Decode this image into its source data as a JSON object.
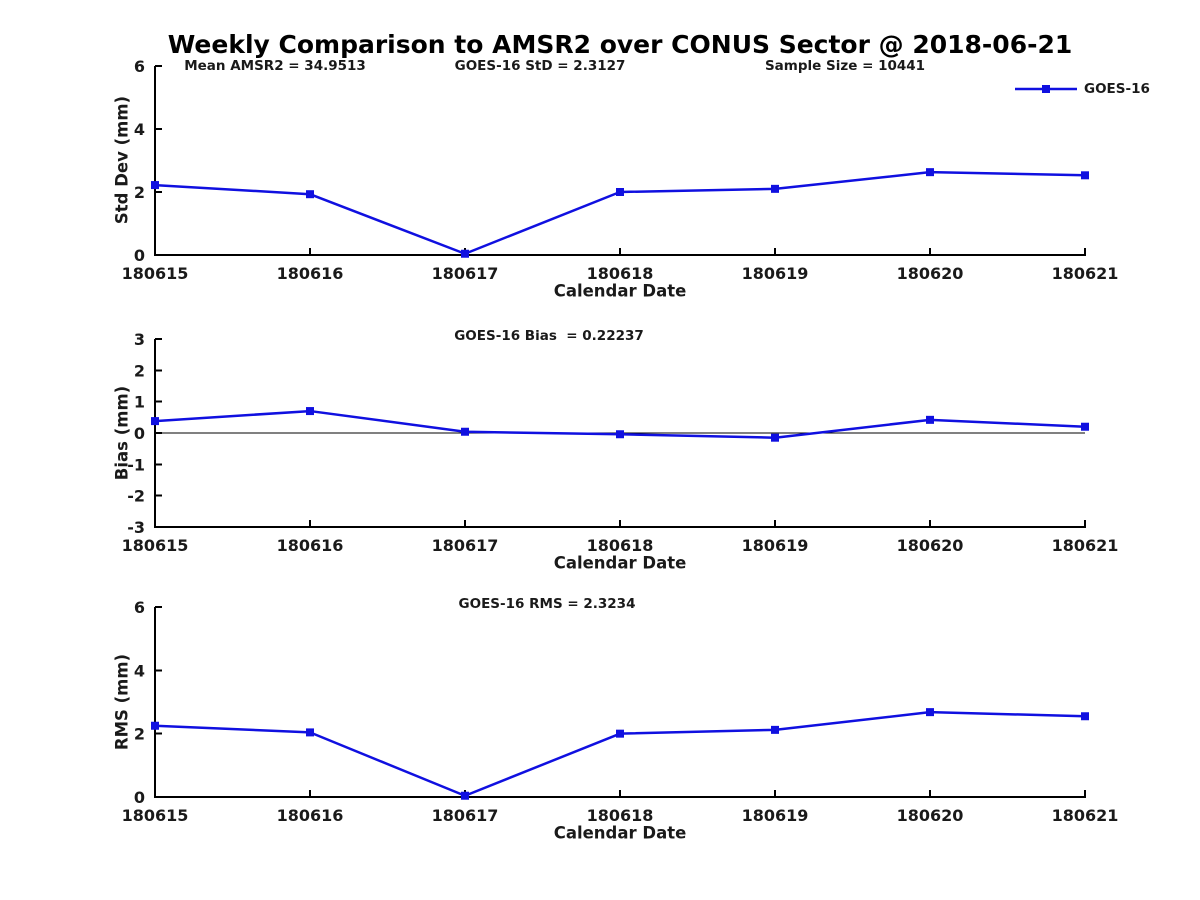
{
  "figure": {
    "title": "Weekly Comparison to AMSR2 over CONUS Sector @ 2018-06-21",
    "series_color": "#1010e0",
    "axis_color": "#000000"
  },
  "legend": {
    "label": "GOES-16",
    "position": "top-right"
  },
  "chart_data": [
    {
      "type": "line",
      "x_categories": [
        "180615",
        "180616",
        "180617",
        "180618",
        "180619",
        "180620",
        "180621"
      ],
      "xlabel": "Calendar Date",
      "ylabel": "Std Dev (mm)",
      "ylim": [
        0,
        6
      ],
      "yticks": [
        0,
        2,
        4,
        6
      ],
      "grid": false,
      "annotations": [
        {
          "text": "Mean AMSR2 = 34.9513"
        },
        {
          "text": "GOES-16 StD = 2.3127"
        },
        {
          "text": "Sample Size = 10441"
        }
      ],
      "series": [
        {
          "name": "GOES-16",
          "color": "#1010e0",
          "marker": "square",
          "values": [
            2.22,
            1.93,
            0.04,
            2.0,
            2.1,
            2.63,
            2.53
          ]
        }
      ]
    },
    {
      "type": "line",
      "x_categories": [
        "180615",
        "180616",
        "180617",
        "180618",
        "180619",
        "180620",
        "180621"
      ],
      "xlabel": "Calendar Date",
      "ylabel": "Bias (mm)",
      "ylim": [
        -3,
        3
      ],
      "yticks": [
        -3,
        -2,
        -1,
        0,
        1,
        2,
        3
      ],
      "zero_line": true,
      "grid": false,
      "annotations": [
        {
          "text": "GOES-16 Bias  = 0.22237"
        }
      ],
      "series": [
        {
          "name": "GOES-16",
          "color": "#1010e0",
          "marker": "square",
          "values": [
            0.38,
            0.7,
            0.04,
            -0.04,
            -0.15,
            0.42,
            0.2
          ]
        }
      ]
    },
    {
      "type": "line",
      "x_categories": [
        "180615",
        "180616",
        "180617",
        "180618",
        "180619",
        "180620",
        "180621"
      ],
      "xlabel": "Calendar Date",
      "ylabel": "RMS (mm)",
      "ylim": [
        0,
        6
      ],
      "yticks": [
        0,
        2,
        4,
        6
      ],
      "grid": false,
      "annotations": [
        {
          "text": "GOES-16 RMS = 2.3234"
        }
      ],
      "series": [
        {
          "name": "GOES-16",
          "color": "#1010e0",
          "marker": "square",
          "values": [
            2.25,
            2.04,
            0.04,
            2.0,
            2.12,
            2.68,
            2.55
          ]
        }
      ]
    }
  ]
}
